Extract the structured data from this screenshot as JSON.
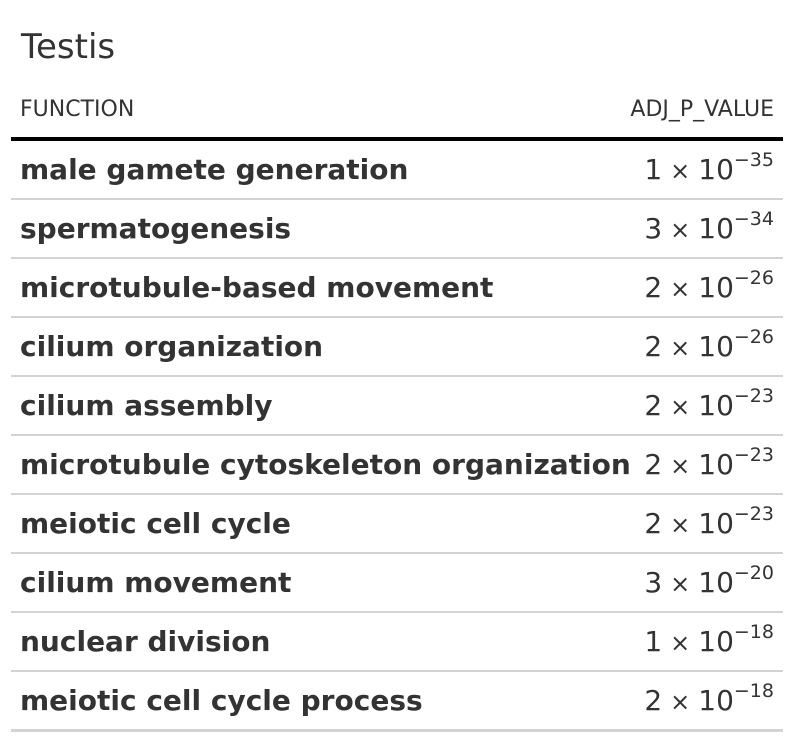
{
  "title": "Testis",
  "columns": {
    "function": "FUNCTION",
    "adj_p_value": "ADJ_P_VALUE"
  },
  "rows": [
    {
      "function": "male gamete generation",
      "mantissa": "1",
      "times": "×",
      "base": "10",
      "exponent": "−35"
    },
    {
      "function": "spermatogenesis",
      "mantissa": "3",
      "times": "×",
      "base": "10",
      "exponent": "−34"
    },
    {
      "function": "microtubule-based movement",
      "mantissa": "2",
      "times": "×",
      "base": "10",
      "exponent": "−26"
    },
    {
      "function": "cilium organization",
      "mantissa": "2",
      "times": "×",
      "base": "10",
      "exponent": "−26"
    },
    {
      "function": "cilium assembly",
      "mantissa": "2",
      "times": "×",
      "base": "10",
      "exponent": "−23"
    },
    {
      "function": "microtubule cytoskeleton organization",
      "mantissa": "2",
      "times": "×",
      "base": "10",
      "exponent": "−23"
    },
    {
      "function": "meiotic cell cycle",
      "mantissa": "2",
      "times": "×",
      "base": "10",
      "exponent": "−23"
    },
    {
      "function": "cilium movement",
      "mantissa": "3",
      "times": "×",
      "base": "10",
      "exponent": "−20"
    },
    {
      "function": "nuclear division",
      "mantissa": "1",
      "times": "×",
      "base": "10",
      "exponent": "−18"
    },
    {
      "function": "meiotic cell cycle process",
      "mantissa": "2",
      "times": "×",
      "base": "10",
      "exponent": "−18"
    }
  ]
}
